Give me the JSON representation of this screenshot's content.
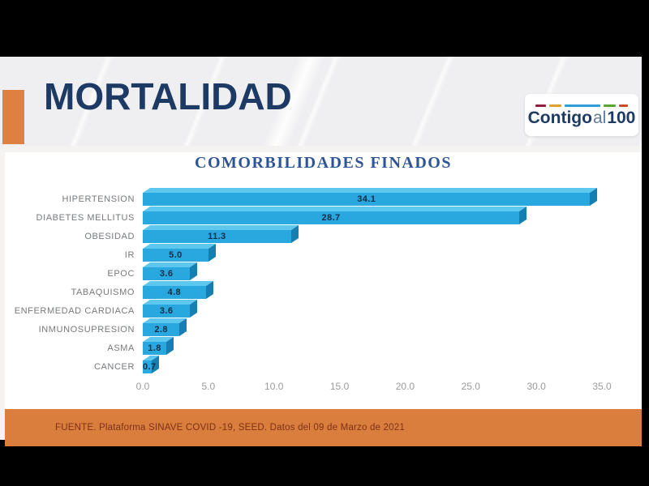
{
  "header": {
    "title": "MORTALIDAD",
    "accent_color": "#dd8040",
    "title_color": "#1c3a63"
  },
  "logo": {
    "contigo": "Contigo",
    "al": "al",
    "hundred": "100",
    "dashes": [
      {
        "color": "#8e1f3f",
        "width": 13
      },
      {
        "color": "#e2a12a",
        "width": 15
      },
      {
        "color": "#2e9fd6",
        "width": 44
      },
      {
        "color": "#5aa339",
        "width": 15
      },
      {
        "color": "#c94a2a",
        "width": 11
      }
    ]
  },
  "chart_data": {
    "type": "bar",
    "orientation": "horizontal",
    "title": "COMORBILIDADES FINADOS",
    "categories": [
      "HIPERTENSION",
      "DIABETES MELLITUS",
      "OBESIDAD",
      "IR",
      "EPOC",
      "TABAQUISMO",
      "ENFERMEDAD CARDIACA",
      "INMUNOSUPRESION",
      "ASMA",
      "CANCER"
    ],
    "values": [
      34.1,
      28.7,
      11.3,
      5.0,
      3.6,
      4.8,
      3.6,
      2.8,
      1.8,
      0.7
    ],
    "value_labels": [
      "34.1",
      "28.7",
      "11.3",
      "5.0",
      "3.6",
      "4.8",
      "3.6",
      "2.8",
      "1.8",
      "0.7"
    ],
    "xlim": [
      0,
      35
    ],
    "xticks": [
      "0.0",
      "5.0",
      "10.0",
      "15.0",
      "20.0",
      "25.0",
      "30.0",
      "35.0"
    ],
    "grid": false,
    "legend": null,
    "bar_color": "#29a8e0",
    "bar_top_color": "#5dc7ee",
    "bar_side_color": "#157fb2",
    "value_text_color": "#152c42",
    "category_text_color": "#76797c",
    "tick_text_color": "#9b9b9b",
    "title_color": "#2f5496"
  },
  "footer": {
    "source": "FUENTE. Plataforma SINAVE COVID -19, SEED. Datos del 09 de Marzo de 2021",
    "bg_color": "#d97e3c",
    "text_color": "#7d3118"
  }
}
